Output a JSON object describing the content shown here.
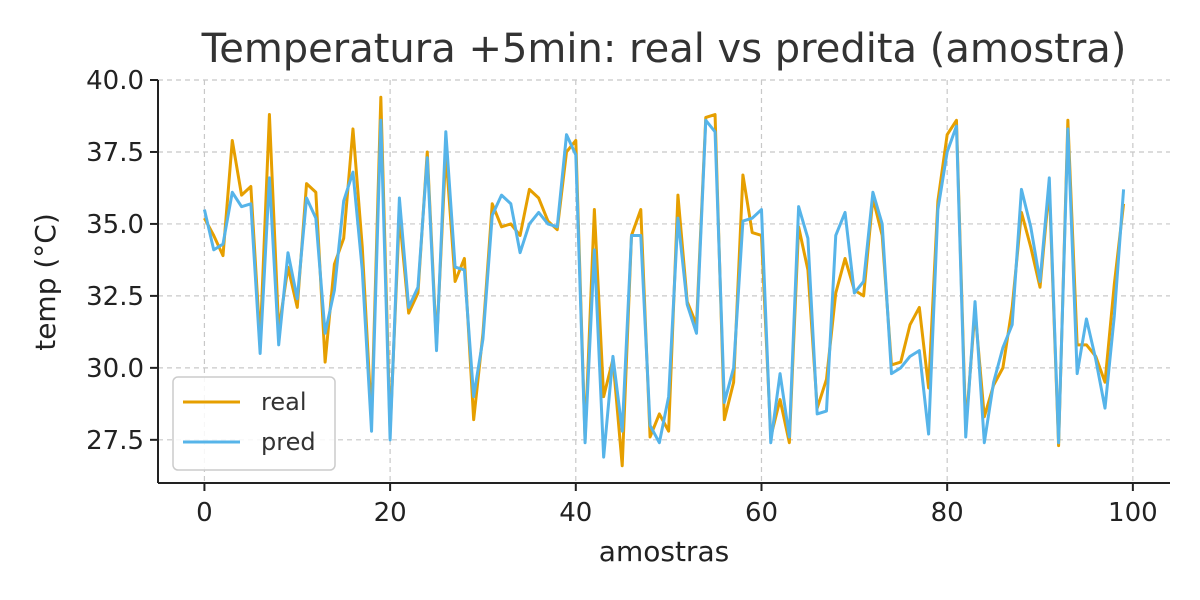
{
  "chart_data": {
    "type": "line",
    "title": "Temperatura +5min: real vs predita (amostra)",
    "xlabel": "amostras",
    "ylabel": "temp (°C)",
    "xlim": [
      -5,
      104
    ],
    "ylim": [
      26.0,
      40.0
    ],
    "xticks": [
      0,
      20,
      40,
      60,
      80,
      100
    ],
    "yticks": [
      27.5,
      30.0,
      32.5,
      35.0,
      37.5,
      40.0
    ],
    "xtick_labels": [
      "0",
      "20",
      "40",
      "60",
      "80",
      "100"
    ],
    "ytick_labels": [
      "27.5",
      "30.0",
      "32.5",
      "35.0",
      "37.5",
      "40.0"
    ],
    "grid": true,
    "legend_position": "lower-left",
    "x": [
      0,
      1,
      2,
      3,
      4,
      5,
      6,
      7,
      8,
      9,
      10,
      11,
      12,
      13,
      14,
      15,
      16,
      17,
      18,
      19,
      20,
      21,
      22,
      23,
      24,
      25,
      26,
      27,
      28,
      29,
      30,
      31,
      32,
      33,
      34,
      35,
      36,
      37,
      38,
      39,
      40,
      41,
      42,
      43,
      44,
      45,
      46,
      47,
      48,
      49,
      50,
      51,
      52,
      53,
      54,
      55,
      56,
      57,
      58,
      59,
      60,
      61,
      62,
      63,
      64,
      65,
      66,
      67,
      68,
      69,
      70,
      71,
      72,
      73,
      74,
      75,
      76,
      77,
      78,
      79,
      80,
      81,
      82,
      83,
      84,
      85,
      86,
      87,
      88,
      89,
      90,
      91,
      92,
      93,
      94,
      95,
      96,
      97,
      98,
      99
    ],
    "series": [
      {
        "name": "real",
        "color": "#E69F00",
        "values": [
          35.2,
          34.6,
          33.9,
          37.9,
          36.0,
          36.3,
          30.9,
          38.8,
          31.3,
          33.5,
          32.1,
          36.4,
          36.1,
          30.2,
          33.6,
          34.5,
          38.3,
          34.2,
          28.2,
          39.4,
          27.8,
          35.3,
          31.9,
          32.6,
          37.5,
          30.8,
          37.5,
          33.0,
          33.8,
          28.2,
          31.2,
          35.7,
          34.9,
          35.0,
          34.6,
          36.2,
          35.9,
          35.1,
          34.8,
          37.5,
          37.9,
          27.5,
          35.5,
          29.0,
          30.3,
          26.6,
          34.6,
          35.5,
          27.6,
          28.4,
          27.8,
          36.0,
          32.3,
          31.5,
          38.7,
          38.8,
          28.2,
          29.5,
          36.7,
          34.7,
          34.6,
          27.6,
          28.9,
          27.4,
          34.9,
          33.4,
          28.6,
          29.6,
          32.6,
          33.8,
          32.7,
          32.5,
          35.9,
          34.6,
          30.1,
          30.2,
          31.5,
          32.1,
          29.3,
          35.8,
          38.1,
          38.6,
          27.9,
          32.0,
          28.3,
          29.4,
          30.0,
          32.1,
          35.4,
          34.2,
          32.8,
          36.3,
          27.3,
          38.6,
          30.8,
          30.8,
          30.4,
          29.5,
          32.9,
          35.7
        ]
      },
      {
        "name": "pred",
        "color": "#56B4E9",
        "values": [
          35.5,
          34.1,
          34.3,
          36.1,
          35.6,
          35.7,
          30.5,
          36.6,
          30.8,
          34.0,
          32.4,
          35.9,
          35.2,
          31.2,
          32.7,
          35.8,
          36.8,
          33.4,
          27.8,
          38.6,
          27.5,
          35.9,
          32.1,
          32.8,
          37.3,
          30.6,
          38.2,
          33.5,
          33.4,
          29.0,
          31.0,
          35.3,
          36.0,
          35.7,
          34.0,
          35.0,
          35.4,
          35.0,
          34.9,
          38.1,
          37.4,
          27.4,
          34.1,
          26.9,
          30.4,
          27.8,
          34.6,
          34.6,
          28.0,
          27.4,
          29.0,
          35.2,
          32.2,
          31.2,
          38.6,
          38.2,
          28.8,
          30.0,
          35.1,
          35.2,
          35.5,
          27.4,
          29.8,
          27.6,
          35.6,
          34.5,
          28.4,
          28.5,
          34.6,
          35.4,
          32.6,
          33.0,
          36.1,
          35.0,
          29.8,
          30.0,
          30.4,
          30.6,
          27.7,
          35.5,
          37.5,
          38.4,
          27.6,
          32.3,
          27.4,
          29.5,
          30.7,
          31.5,
          36.2,
          34.9,
          33.0,
          36.6,
          27.4,
          38.3,
          29.8,
          31.7,
          30.3,
          28.6,
          31.8,
          36.2
        ]
      }
    ]
  }
}
